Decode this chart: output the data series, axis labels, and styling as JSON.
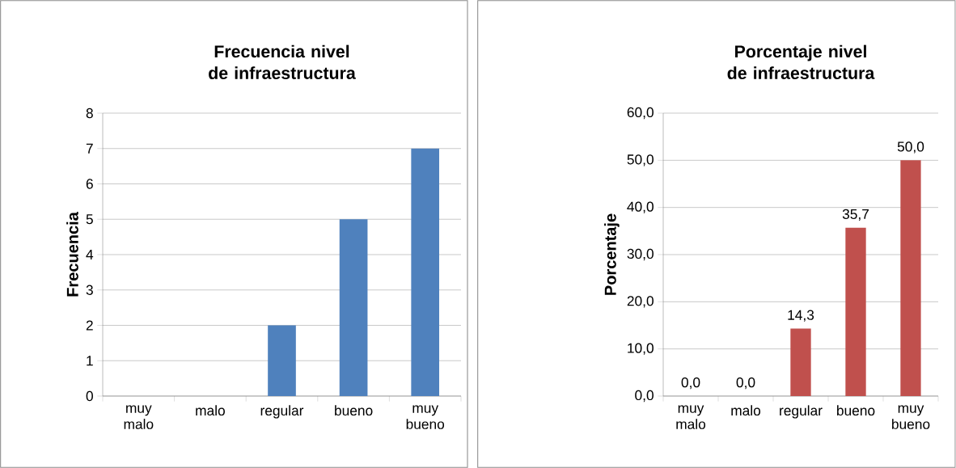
{
  "chart_data": [
    {
      "type": "bar",
      "title": "Frecuencia nivel de infraestructura",
      "ylabel": "Frecuencia",
      "categories": [
        "muy malo",
        "malo",
        "regular",
        "bueno",
        "muy bueno"
      ],
      "values": [
        0,
        0,
        2,
        5,
        7
      ],
      "color": "#4f81bd",
      "ylim": [
        0,
        8
      ],
      "yticks": [
        0,
        1,
        2,
        3,
        4,
        5,
        6,
        7,
        8
      ],
      "grid": "y"
    },
    {
      "type": "bar",
      "title": "Porcentaje nivel de infraestructura",
      "ylabel": "Porcentaje",
      "categories": [
        "muy malo",
        "malo",
        "regular",
        "bueno",
        "muy bueno"
      ],
      "values": [
        0.0,
        0.0,
        14.3,
        35.7,
        50.0
      ],
      "value_labels": [
        "0,0",
        "0,0",
        "14,3",
        "35,7",
        "50,0"
      ],
      "color": "#c0504d",
      "ylim": [
        0,
        60
      ],
      "yticks": [
        {
          "value": 0,
          "label": "0,0"
        },
        {
          "value": 10,
          "label": "10,0"
        },
        {
          "value": 20,
          "label": "20,0"
        },
        {
          "value": 30,
          "label": "30,0"
        },
        {
          "value": 40,
          "label": "40,0"
        },
        {
          "value": 50,
          "label": "50,0"
        },
        {
          "value": 60,
          "label": "60,0"
        }
      ],
      "grid": "y"
    }
  ]
}
